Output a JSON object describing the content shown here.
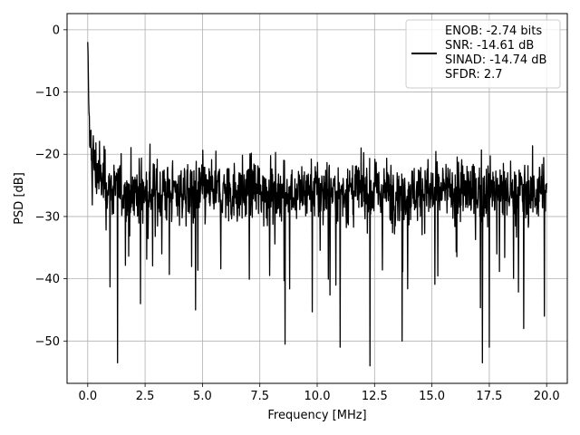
{
  "chart_data": {
    "type": "line",
    "title": "",
    "xlabel": "Frequency [MHz]",
    "ylabel": "PSD [dB]",
    "xlim": [
      -0.9,
      20.9
    ],
    "ylim": [
      -56.8,
      2.6
    ],
    "xticks": [
      0.0,
      2.5,
      5.0,
      7.5,
      10.0,
      12.5,
      15.0,
      17.5,
      20.0
    ],
    "xtick_labels": [
      "0.0",
      "2.5",
      "5.0",
      "7.5",
      "10.0",
      "12.5",
      "15.0",
      "17.5",
      "20.0"
    ],
    "yticks": [
      0,
      -10,
      -20,
      -30,
      -40,
      -50
    ],
    "ytick_labels": [
      "0",
      "−10",
      "−20",
      "−30",
      "−40",
      "−50"
    ],
    "grid": true,
    "legend_position": "top-right",
    "series": [
      {
        "name": "",
        "color": "#000000",
        "x_range": [
          0.0,
          20.0
        ],
        "peak_value": 0.0,
        "noise_floor_median": -26.0,
        "noise_upper_envelope": [
          -16.0,
          -22.0
        ],
        "noise_lower_spikes": [
          {
            "x": 1.3,
            "y": -53.5
          },
          {
            "x": 12.3,
            "y": -54.0
          },
          {
            "x": 17.2,
            "y": -53.5
          },
          {
            "x": 17.5,
            "y": -51.0
          },
          {
            "x": 8.6,
            "y": -50.5
          },
          {
            "x": 11.0,
            "y": -51.0
          },
          {
            "x": 13.7,
            "y": -50.0
          },
          {
            "x": 2.3,
            "y": -44.0
          },
          {
            "x": 4.7,
            "y": -45.0
          },
          {
            "x": 19.0,
            "y": -48.0
          },
          {
            "x": 19.9,
            "y": -46.0
          }
        ]
      }
    ],
    "legend": {
      "lines": [
        "ENOB: -2.74 bits",
        "SNR: -14.61 dB",
        "SINAD: -14.74 dB",
        "SFDR: 2.7"
      ]
    }
  }
}
